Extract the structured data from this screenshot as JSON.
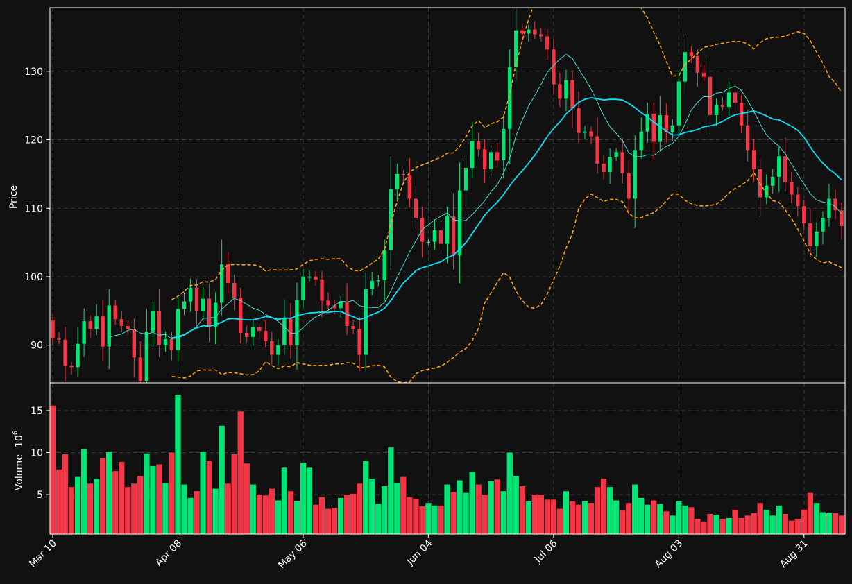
{
  "chart_data": {
    "type": "candlestick",
    "price_panel": {
      "ylabel": "Price",
      "ylim": [
        84.5,
        139.3
      ],
      "yticks": [
        90,
        100,
        110,
        120,
        130
      ],
      "grid": true
    },
    "volume_panel": {
      "ylabel": "Volume",
      "exponent_label": "10",
      "exponent_power": "6",
      "ylim": [
        0.3,
        18.3
      ],
      "yticks": [
        5,
        10,
        15
      ],
      "grid": true
    },
    "x_ticks": [
      {
        "index": 0,
        "label": "Mar 10"
      },
      {
        "index": 20,
        "label": "Apr 08"
      },
      {
        "index": 40,
        "label": "May 06"
      },
      {
        "index": 60,
        "label": "Jun 04"
      },
      {
        "index": 80,
        "label": "Jul 06"
      },
      {
        "index": 100,
        "label": "Aug 03"
      },
      {
        "index": 120,
        "label": "Aug 31"
      }
    ],
    "colors": {
      "up": "#00e676",
      "down": "#f23645",
      "ma_fast": "#40e0d0",
      "ma_slow": "#00e5ff",
      "bands": "#ffa500",
      "background": "#111111"
    },
    "close": [
      91.0,
      90.8,
      87.0,
      86.8,
      90.2,
      93.5,
      92.4,
      94.2,
      89.8,
      95.8,
      93.8,
      92.8,
      92.4,
      88.2,
      84.8,
      92.0,
      95.0,
      90.0,
      90.9,
      89.3,
      95.3,
      96.4,
      98.4,
      95.0,
      96.8,
      92.6,
      96.2,
      101.8,
      99.1,
      96.9,
      91.8,
      91.2,
      92.6,
      92.1,
      90.6,
      88.6,
      90.0,
      93.9,
      90.0,
      96.6,
      100.0,
      100.0,
      99.6,
      96.5,
      95.8,
      95.4,
      96.4,
      92.8,
      92.4,
      88.6,
      98.2,
      99.4,
      99.5,
      103.9,
      112.8,
      115.0,
      114.8,
      111.4,
      108.6,
      105.1,
      105.1,
      106.8,
      104.8,
      108.8,
      103.1,
      112.6,
      115.9,
      119.8,
      118.6,
      115.7,
      118.2,
      117.0,
      121.6,
      130.6,
      136.0,
      135.5,
      136.1,
      135.4,
      135.1,
      133.2,
      128.1,
      126.0,
      128.7,
      124.6,
      121.0,
      121.2,
      120.5,
      116.5,
      115.3,
      117.5,
      118.2,
      115.1,
      111.4,
      118.5,
      121.2,
      123.8,
      119.7,
      123.6,
      121.1,
      122.1,
      128.5,
      132.8,
      132.2,
      129.8,
      129.2,
      123.6,
      125.1,
      124.8,
      126.9,
      125.4,
      122.1,
      118.5,
      115.7,
      111.6,
      113.3,
      114.6,
      117.6,
      113.8,
      112.0,
      110.3,
      107.8,
      104.5,
      106.6,
      108.6,
      111.4,
      109.7,
      107.4
    ],
    "volume": [
      15.6,
      8.0,
      9.8,
      5.9,
      7.1,
      10.4,
      6.3,
      6.9,
      9.3,
      10.1,
      7.8,
      8.9,
      5.9,
      6.3,
      7.2,
      9.9,
      8.4,
      8.6,
      6.4,
      10.0,
      16.9,
      6.2,
      4.6,
      5.4,
      10.1,
      9.0,
      5.7,
      13.2,
      6.3,
      9.8,
      14.9,
      8.7,
      6.2,
      5.0,
      4.9,
      5.7,
      4.3,
      8.2,
      5.4,
      4.2,
      8.8,
      8.2,
      3.8,
      4.7,
      3.3,
      3.4,
      4.6,
      5.0,
      5.1,
      6.3,
      9.0,
      6.9,
      3.9,
      6.0,
      10.6,
      6.4,
      7.1,
      4.7,
      4.5,
      3.6,
      4.0,
      3.7,
      3.7,
      6.2,
      5.3,
      6.7,
      5.2,
      7.7,
      6.2,
      5.0,
      6.6,
      6.8,
      5.4,
      10.0,
      7.2,
      6.0,
      4.2,
      5.0,
      5.0,
      4.4,
      4.4,
      3.3,
      5.4,
      4.2,
      3.8,
      4.2,
      4.0,
      5.9,
      6.9,
      5.9,
      4.3,
      3.1,
      4.0,
      6.2,
      4.6,
      3.8,
      4.3,
      3.9,
      3.0,
      2.5,
      4.2,
      3.7,
      3.5,
      2.1,
      1.8,
      2.7,
      2.6,
      2.1,
      2.2,
      3.2,
      2.2,
      2.5,
      2.8,
      4.0,
      3.2,
      2.5,
      3.7,
      2.7,
      1.9,
      2.1,
      3.2,
      5.2,
      4.0,
      2.9,
      2.8,
      2.8,
      2.5
    ]
  }
}
